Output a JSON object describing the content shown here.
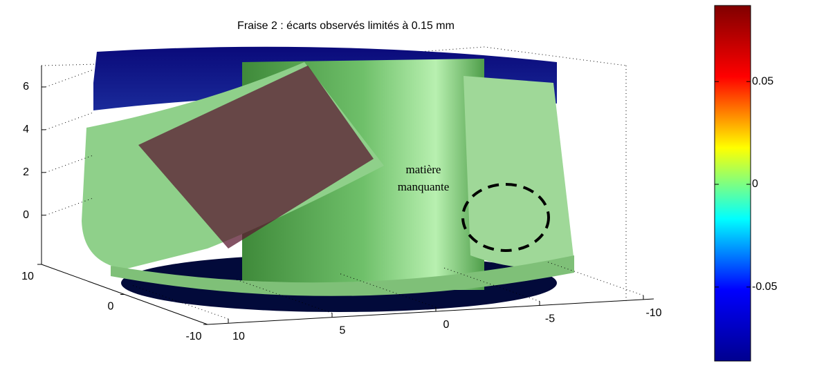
{
  "chart_data": {
    "type": "surface",
    "title": "Fraise 2 : écarts observés limités à 0.15 mm",
    "annotation": "matière manquante",
    "xlim": [
      -10,
      10
    ],
    "xticks": [
      10,
      5,
      0,
      -5,
      -10
    ],
    "ylim": [
      -10,
      10
    ],
    "yticks": [
      10,
      0,
      -10
    ],
    "zlim": [
      -2.3,
      7
    ],
    "zticks": [
      0,
      2,
      4,
      6
    ],
    "clim": [
      -0.086,
      0.087
    ],
    "cticks": [
      -0.05,
      0,
      0.05
    ],
    "colormap": [
      "#00008f",
      "#0000ff",
      "#00ffff",
      "#ffff00",
      "#ff0000",
      "#800000"
    ]
  }
}
